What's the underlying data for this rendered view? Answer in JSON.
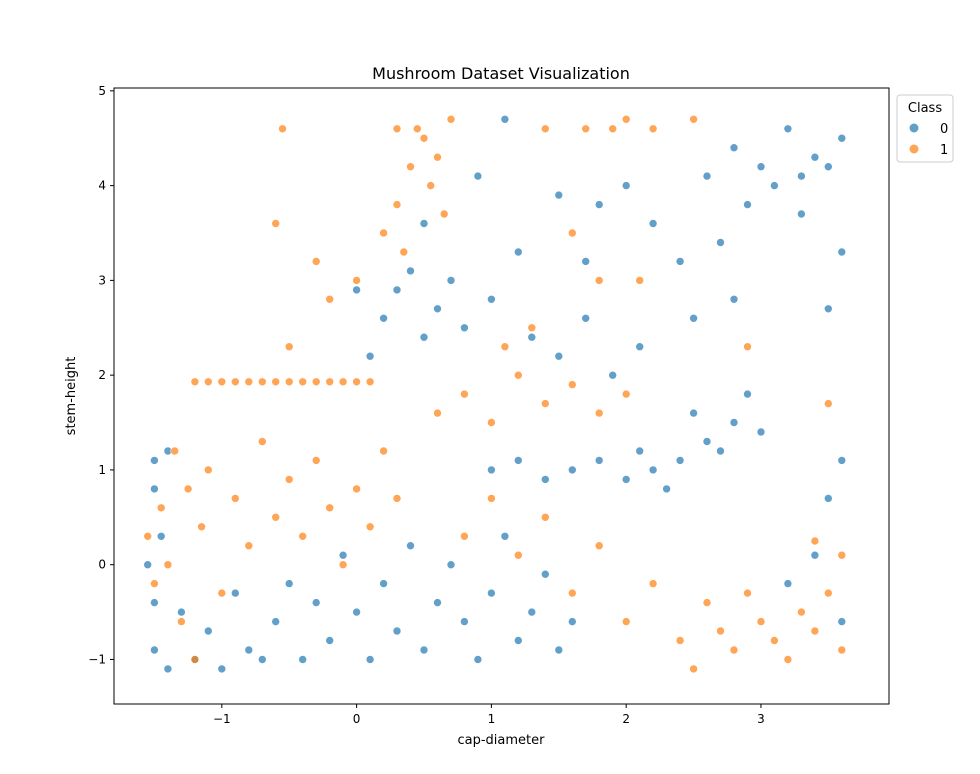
{
  "chart_data": {
    "type": "scatter",
    "title": "Mushroom Dataset Visualization",
    "xlabel": "cap-diameter",
    "ylabel": "stem-height",
    "xlim": [
      -1.8,
      3.95
    ],
    "ylim": [
      -1.47,
      5.03
    ],
    "xticks": [
      -1,
      0,
      1,
      2,
      3
    ],
    "yticks": [
      -1,
      0,
      1,
      2,
      3,
      4,
      5
    ],
    "xtick_labels": [
      "−1",
      "0",
      "1",
      "2",
      "3"
    ],
    "ytick_labels": [
      "−1",
      "0",
      "1",
      "2",
      "3",
      "4",
      "5"
    ],
    "grid": false,
    "legend": {
      "title": "Class",
      "placement": "upper-right-outside"
    },
    "series": [
      {
        "name": "0",
        "color": "#1f77b4",
        "points": [
          [
            -1.5,
            -0.9
          ],
          [
            -1.4,
            -1.1
          ],
          [
            -1.3,
            -0.5
          ],
          [
            -1.2,
            -1.0
          ],
          [
            -1.1,
            -0.7
          ],
          [
            -1.0,
            -1.1
          ],
          [
            -0.9,
            -0.3
          ],
          [
            -0.8,
            -0.9
          ],
          [
            -0.7,
            -1.0
          ],
          [
            -0.6,
            -0.6
          ],
          [
            -0.5,
            -0.2
          ],
          [
            -0.4,
            -1.0
          ],
          [
            -0.3,
            -0.4
          ],
          [
            -0.2,
            -0.8
          ],
          [
            -0.1,
            0.1
          ],
          [
            0.0,
            -0.5
          ],
          [
            0.1,
            -1.0
          ],
          [
            0.2,
            -0.2
          ],
          [
            0.3,
            -0.7
          ],
          [
            0.4,
            0.2
          ],
          [
            0.5,
            -0.9
          ],
          [
            0.6,
            -0.4
          ],
          [
            0.7,
            0.0
          ],
          [
            0.8,
            -0.6
          ],
          [
            0.9,
            -1.0
          ],
          [
            1.0,
            -0.3
          ],
          [
            1.1,
            0.3
          ],
          [
            1.2,
            -0.8
          ],
          [
            1.3,
            -0.5
          ],
          [
            1.4,
            -0.1
          ],
          [
            1.5,
            -0.9
          ],
          [
            1.6,
            -0.6
          ],
          [
            -1.5,
            0.8
          ],
          [
            -1.5,
            1.1
          ],
          [
            -1.45,
            0.3
          ],
          [
            -1.4,
            1.2
          ],
          [
            -1.55,
            0.0
          ],
          [
            -1.5,
            -0.4
          ],
          [
            0.2,
            2.6
          ],
          [
            0.3,
            2.9
          ],
          [
            0.5,
            2.4
          ],
          [
            0.4,
            3.1
          ],
          [
            0.6,
            2.7
          ],
          [
            0.1,
            2.2
          ],
          [
            0.7,
            3.0
          ],
          [
            0.8,
            2.5
          ],
          [
            0.0,
            2.9
          ],
          [
            0.5,
            3.6
          ],
          [
            1.0,
            1.0
          ],
          [
            1.2,
            1.1
          ],
          [
            1.4,
            0.9
          ],
          [
            1.6,
            1.0
          ],
          [
            1.8,
            1.1
          ],
          [
            2.0,
            0.9
          ],
          [
            2.2,
            1.0
          ],
          [
            2.4,
            1.1
          ],
          [
            2.6,
            1.3
          ],
          [
            2.8,
            1.5
          ],
          [
            2.5,
            1.6
          ],
          [
            2.7,
            1.2
          ],
          [
            2.9,
            1.8
          ],
          [
            3.0,
            1.4
          ],
          [
            2.3,
            0.8
          ],
          [
            2.1,
            1.2
          ],
          [
            2.6,
            4.1
          ],
          [
            2.8,
            4.4
          ],
          [
            3.0,
            4.2
          ],
          [
            3.2,
            4.6
          ],
          [
            3.4,
            4.3
          ],
          [
            3.6,
            4.5
          ],
          [
            3.1,
            4.0
          ],
          [
            3.3,
            4.1
          ],
          [
            3.5,
            4.2
          ],
          [
            2.9,
            3.8
          ],
          [
            2.7,
            3.4
          ],
          [
            2.4,
            3.2
          ],
          [
            2.2,
            3.6
          ],
          [
            2.0,
            4.0
          ],
          [
            3.3,
            3.7
          ],
          [
            3.6,
            3.3
          ],
          [
            3.5,
            2.7
          ],
          [
            2.5,
            2.6
          ],
          [
            2.8,
            2.8
          ],
          [
            1.1,
            4.7
          ],
          [
            1.5,
            3.9
          ],
          [
            1.8,
            3.8
          ],
          [
            1.7,
            3.2
          ],
          [
            3.6,
            1.1
          ],
          [
            3.5,
            0.7
          ],
          [
            3.4,
            0.1
          ],
          [
            3.6,
            -0.6
          ],
          [
            3.2,
            -0.2
          ],
          [
            1.3,
            2.4
          ],
          [
            1.5,
            2.2
          ],
          [
            1.7,
            2.6
          ],
          [
            1.9,
            2.0
          ],
          [
            2.1,
            2.3
          ],
          [
            1.0,
            2.8
          ],
          [
            1.2,
            3.3
          ],
          [
            0.9,
            4.1
          ]
        ]
      },
      {
        "name": "1",
        "color": "#ff7f0e",
        "points": [
          [
            -1.55,
            0.3
          ],
          [
            -1.5,
            -0.2
          ],
          [
            -1.45,
            0.6
          ],
          [
            -1.4,
            0.0
          ],
          [
            -1.35,
            1.2
          ],
          [
            -1.3,
            -0.6
          ],
          [
            -1.25,
            0.8
          ],
          [
            -1.2,
            -1.0
          ],
          [
            -1.15,
            0.4
          ],
          [
            -1.1,
            1.0
          ],
          [
            -1.0,
            -0.3
          ],
          [
            -0.9,
            0.7
          ],
          [
            -0.8,
            0.2
          ],
          [
            -0.7,
            1.3
          ],
          [
            -0.6,
            0.5
          ],
          [
            -0.5,
            0.9
          ],
          [
            -0.4,
            0.3
          ],
          [
            -0.3,
            1.1
          ],
          [
            -0.2,
            0.6
          ],
          [
            -0.1,
            0.0
          ],
          [
            0.0,
            0.8
          ],
          [
            0.1,
            0.4
          ],
          [
            0.2,
            1.2
          ],
          [
            0.3,
            0.7
          ],
          [
            -1.2,
            1.93
          ],
          [
            -1.1,
            1.93
          ],
          [
            -1.0,
            1.93
          ],
          [
            -0.9,
            1.93
          ],
          [
            -0.8,
            1.93
          ],
          [
            -0.7,
            1.93
          ],
          [
            -0.6,
            1.93
          ],
          [
            -0.5,
            1.93
          ],
          [
            -0.4,
            1.93
          ],
          [
            -0.3,
            1.93
          ],
          [
            -0.2,
            1.93
          ],
          [
            -0.1,
            1.93
          ],
          [
            0.0,
            1.93
          ],
          [
            0.1,
            1.93
          ],
          [
            0.2,
            3.5
          ],
          [
            0.3,
            3.8
          ],
          [
            0.4,
            4.2
          ],
          [
            0.5,
            4.5
          ],
          [
            0.6,
            4.3
          ],
          [
            0.45,
            4.6
          ],
          [
            0.55,
            4.0
          ],
          [
            0.35,
            3.3
          ],
          [
            0.65,
            3.7
          ],
          [
            0.0,
            3.0
          ],
          [
            -0.2,
            2.8
          ],
          [
            -0.5,
            2.3
          ],
          [
            -0.3,
            3.2
          ],
          [
            -0.6,
            3.6
          ],
          [
            -0.55,
            4.6
          ],
          [
            0.7,
            4.7
          ],
          [
            0.3,
            4.6
          ],
          [
            0.6,
            1.6
          ],
          [
            0.8,
            1.8
          ],
          [
            1.0,
            1.5
          ],
          [
            1.2,
            2.0
          ],
          [
            1.4,
            1.7
          ],
          [
            1.6,
            1.9
          ],
          [
            1.8,
            1.6
          ],
          [
            2.0,
            1.8
          ],
          [
            1.1,
            2.3
          ],
          [
            1.3,
            2.5
          ],
          [
            0.8,
            0.3
          ],
          [
            1.0,
            0.7
          ],
          [
            1.2,
            0.1
          ],
          [
            1.4,
            0.5
          ],
          [
            1.6,
            -0.3
          ],
          [
            1.8,
            0.2
          ],
          [
            2.0,
            -0.6
          ],
          [
            2.2,
            -0.2
          ],
          [
            2.4,
            -0.8
          ],
          [
            2.6,
            -0.4
          ],
          [
            2.8,
            -0.9
          ],
          [
            3.0,
            -0.6
          ],
          [
            3.2,
            -1.0
          ],
          [
            3.4,
            -0.7
          ],
          [
            3.6,
            -0.9
          ],
          [
            3.5,
            -0.3
          ],
          [
            2.5,
            -1.1
          ],
          [
            2.7,
            -0.7
          ],
          [
            2.9,
            -0.3
          ],
          [
            3.1,
            -0.8
          ],
          [
            3.3,
            -0.5
          ],
          [
            3.6,
            0.1
          ],
          [
            3.4,
            0.25
          ],
          [
            1.7,
            4.6
          ],
          [
            1.9,
            4.6
          ],
          [
            2.0,
            4.7
          ],
          [
            2.5,
            4.7
          ],
          [
            1.4,
            4.6
          ],
          [
            2.2,
            4.6
          ],
          [
            1.6,
            3.5
          ],
          [
            1.8,
            3.0
          ],
          [
            2.1,
            3.0
          ],
          [
            3.5,
            1.7
          ],
          [
            2.9,
            2.3
          ]
        ]
      }
    ]
  }
}
